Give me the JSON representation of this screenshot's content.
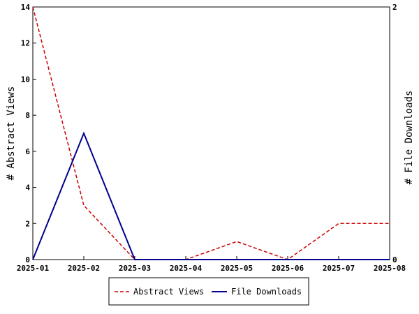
{
  "chart_data": {
    "type": "line",
    "x": [
      "2025-01",
      "2025-02",
      "2025-03",
      "2025-04",
      "2025-05",
      "2025-06",
      "2025-07",
      "2025-08"
    ],
    "series": [
      {
        "name": "Abstract Views",
        "axis": "left",
        "color": "#cc0000",
        "dashed": true,
        "values": [
          14,
          3,
          0,
          0,
          1,
          0,
          2,
          2
        ]
      },
      {
        "name": "File Downloads",
        "axis": "right",
        "color": "#00008b",
        "dashed": false,
        "values": [
          0,
          1,
          0,
          0,
          0,
          0,
          0,
          0
        ]
      }
    ],
    "ylabel_left": "# Abstract Views",
    "ylabel_right": "# File Downloads",
    "ylim_left": [
      0,
      14
    ],
    "yticks_left": [
      0,
      2,
      4,
      6,
      8,
      10,
      12,
      14
    ],
    "ylim_right": [
      0,
      2
    ],
    "yticks_right": [
      0,
      2
    ],
    "grid": false,
    "legend_position": "bottom-center"
  }
}
